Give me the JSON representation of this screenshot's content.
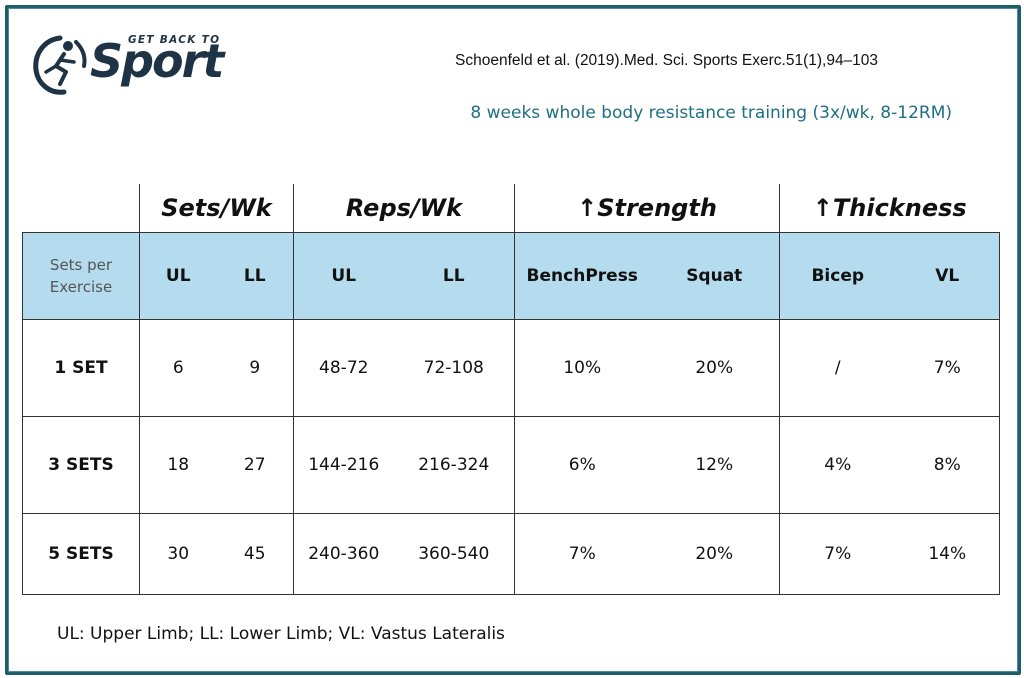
{
  "logo": {
    "tagline": "GET BACK TO",
    "word": "Sport",
    "brand_color": "#1f3347"
  },
  "citation": "Schoenfeld et al. (2019).Med. Sci. Sports Exerc.51(1),94–103",
  "subtitle": "8 weeks whole body resistance training (3x/wk, 8-12RM)",
  "table": {
    "groups": [
      "Sets/Wk",
      "Reps/Wk",
      "↑Strength",
      "↑Thickness"
    ],
    "row_header_label": [
      "Sets per",
      "Exercise"
    ],
    "subheaders": [
      "UL",
      "LL",
      "UL",
      "LL",
      "BenchPress",
      "Squat",
      "Bicep",
      "VL"
    ],
    "header_bg": "#b5dcee",
    "rows": [
      {
        "label": "1 SET",
        "cells": [
          "6",
          "9",
          "48-72",
          "72-108",
          "10%",
          "20%",
          "/",
          "7%"
        ]
      },
      {
        "label": "3 SETS",
        "cells": [
          "18",
          "27",
          "144-216",
          "216-324",
          "6%",
          "12%",
          "4%",
          "8%"
        ]
      },
      {
        "label": "5 SETS",
        "cells": [
          "30",
          "45",
          "240-360",
          "360-540",
          "7%",
          "20%",
          "7%",
          "14%"
        ]
      }
    ]
  },
  "footnote": "UL: Upper Limb; LL: Lower Limb; VL: Vastus Lateralis",
  "accent_color": "#1f6f82",
  "frame_color": "#1d5e6c"
}
